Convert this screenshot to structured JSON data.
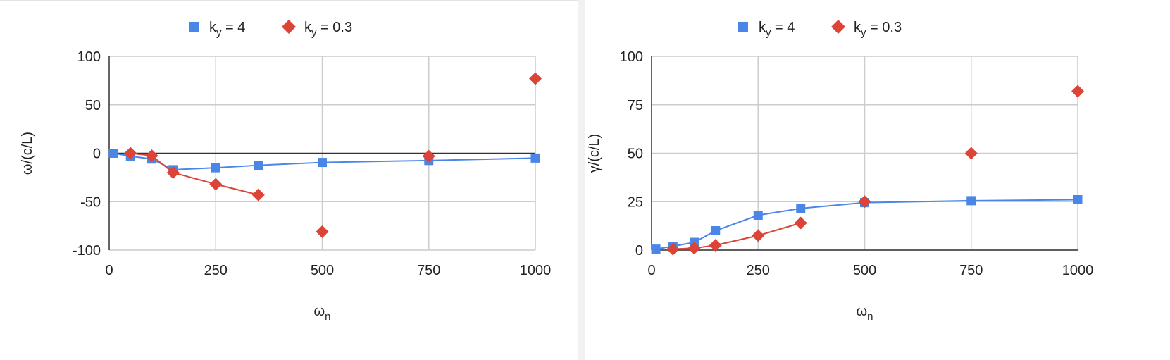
{
  "colors": {
    "series1": "#4a86e8",
    "series2": "#db4437",
    "grid": "#cccccc",
    "zero_line": "#333333"
  },
  "chart_data": [
    {
      "type": "scatter",
      "title": "",
      "xlabel": {
        "base": "ω",
        "sub": "n"
      },
      "ylabel": "ω/(c/L)",
      "xlim": [
        0,
        1000
      ],
      "ylim": [
        -100,
        100
      ],
      "xticks": [
        "0",
        "250",
        "500",
        "750",
        "1000"
      ],
      "yticks": [
        "100",
        "50",
        "0",
        "-50",
        "-100"
      ],
      "xtick_values": [
        0,
        250,
        500,
        750,
        1000
      ],
      "ytick_values": [
        100,
        50,
        0,
        -50,
        -100
      ],
      "grid": true,
      "legend": "top",
      "series": [
        {
          "name": {
            "base": "k",
            "sub": "y",
            "rest": " = 4"
          },
          "marker": "square",
          "color": "#4a86e8",
          "x": [
            10,
            50,
            100,
            150,
            250,
            350,
            500,
            750,
            1000
          ],
          "y": [
            0,
            -3,
            -6,
            -17,
            -15,
            -12.5,
            -9.5,
            -7.5,
            -5
          ],
          "connected_upto": 9
        },
        {
          "name": {
            "base": "k",
            "sub": "y",
            "rest": " = 0.3"
          },
          "marker": "diamond",
          "color": "#db4437",
          "x": [
            50,
            100,
            150,
            250,
            350,
            500,
            750,
            1000
          ],
          "y": [
            0,
            -2.5,
            -20,
            -32,
            -43,
            -81,
            -3,
            77
          ],
          "connected_upto": 5
        }
      ]
    },
    {
      "type": "scatter",
      "title": "",
      "xlabel": {
        "base": "ω",
        "sub": "n"
      },
      "ylabel": "γ/(c/L)",
      "xlim": [
        0,
        1000
      ],
      "ylim": [
        0,
        100
      ],
      "xticks": [
        "0",
        "250",
        "500",
        "750",
        "1000"
      ],
      "yticks": [
        "100",
        "75",
        "50",
        "25",
        "0"
      ],
      "xtick_values": [
        0,
        250,
        500,
        750,
        1000
      ],
      "ytick_values": [
        100,
        75,
        50,
        25,
        0
      ],
      "grid": true,
      "legend": "top",
      "series": [
        {
          "name": {
            "base": "k",
            "sub": "y",
            "rest": " = 4"
          },
          "marker": "square",
          "color": "#4a86e8",
          "x": [
            10,
            50,
            100,
            150,
            250,
            350,
            500,
            750,
            1000
          ],
          "y": [
            0.5,
            2,
            4,
            10,
            18,
            21.5,
            24.5,
            25.5,
            26
          ],
          "connected_upto": 9
        },
        {
          "name": {
            "base": "k",
            "sub": "y",
            "rest": " = 0.3"
          },
          "marker": "diamond",
          "color": "#db4437",
          "x": [
            50,
            100,
            150,
            250,
            350,
            500,
            750,
            1000
          ],
          "y": [
            0.5,
            1,
            2.5,
            7.5,
            14,
            25,
            50,
            82
          ],
          "connected_upto": 5
        }
      ]
    }
  ]
}
